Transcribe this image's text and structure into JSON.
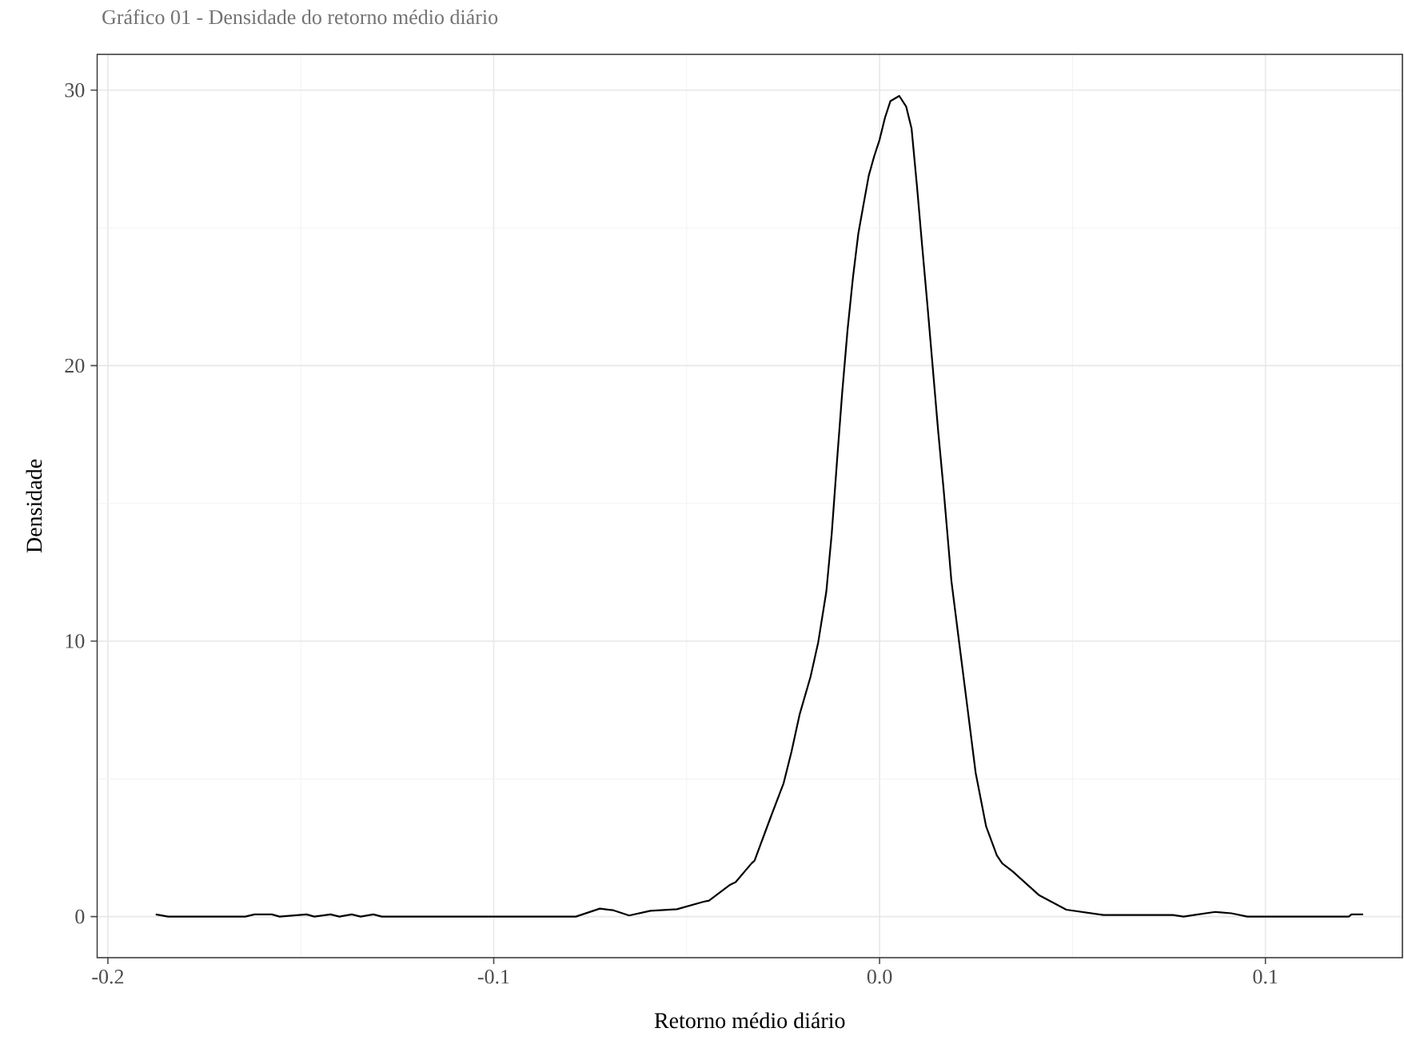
{
  "chart_data": {
    "type": "line",
    "title": "Gráfico 01 - Densidade do retorno médio diário",
    "xlabel": "Retorno médio diário",
    "ylabel": "Densidade",
    "x": [
      -0.1876,
      -0.1844,
      -0.1644,
      -0.162,
      -0.1575,
      -0.1555,
      -0.1485,
      -0.1465,
      -0.1423,
      -0.14,
      -0.1368,
      -0.1345,
      -0.1312,
      -0.129,
      -0.0787,
      -0.0725,
      -0.069,
      -0.0649,
      -0.0594,
      -0.0525,
      -0.0456,
      -0.0442,
      -0.0387,
      -0.0373,
      -0.0332,
      -0.0324,
      -0.0283,
      -0.0249,
      -0.0228,
      -0.0207,
      -0.0179,
      -0.0159,
      -0.0138,
      -0.0124,
      -0.011,
      -0.0097,
      -0.0083,
      -0.0069,
      -0.0055,
      -0.0041,
      -0.0028,
      -0.0014,
      0,
      0.0014,
      0.0028,
      0.0051,
      0.0069,
      0.0083,
      0.0097,
      0.011,
      0.0124,
      0.0138,
      0.0152,
      0.0166,
      0.0177,
      0.0186,
      0.0207,
      0.0228,
      0.0249,
      0.0276,
      0.0304,
      0.0318,
      0.0345,
      0.0414,
      0.0484,
      0.058,
      0.076,
      0.0788,
      0.0815,
      0.087,
      0.0912,
      0.0953,
      0.1216,
      0.1223,
      0.1253
    ],
    "values": [
      0.08,
      0,
      0,
      0.08,
      0.08,
      0,
      0.08,
      0,
      0.08,
      0,
      0.08,
      0,
      0.08,
      0,
      0,
      0.29,
      0.23,
      0.04,
      0.21,
      0.27,
      0.54,
      0.58,
      1.16,
      1.25,
      1.93,
      2.03,
      3.58,
      4.83,
      6.0,
      7.35,
      8.7,
      9.96,
      11.8,
      13.9,
      16.6,
      19.0,
      21.3,
      23.2,
      24.8,
      25.9,
      26.9,
      27.6,
      28.2,
      29.0,
      29.6,
      29.79,
      29.4,
      28.6,
      26.5,
      24.4,
      22.2,
      19.9,
      17.6,
      15.5,
      13.7,
      12.2,
      9.87,
      7.55,
      5.22,
      3.28,
      2.22,
      1.93,
      1.64,
      0.77,
      0.25,
      0.06,
      0.06,
      0,
      0.06,
      0.17,
      0.12,
      0,
      0,
      0.08,
      0.08
    ],
    "color": "#000000",
    "xlim": [
      -0.2028,
      0.1355
    ],
    "ylim": [
      -1.49,
      31.3
    ],
    "xticks": [
      -0.2,
      -0.1,
      {
        "value": 0,
        "label": "0.0"
      },
      0.1
    ],
    "yticks": [
      0,
      10,
      20,
      30
    ],
    "grid": true,
    "line_style": "solid"
  }
}
